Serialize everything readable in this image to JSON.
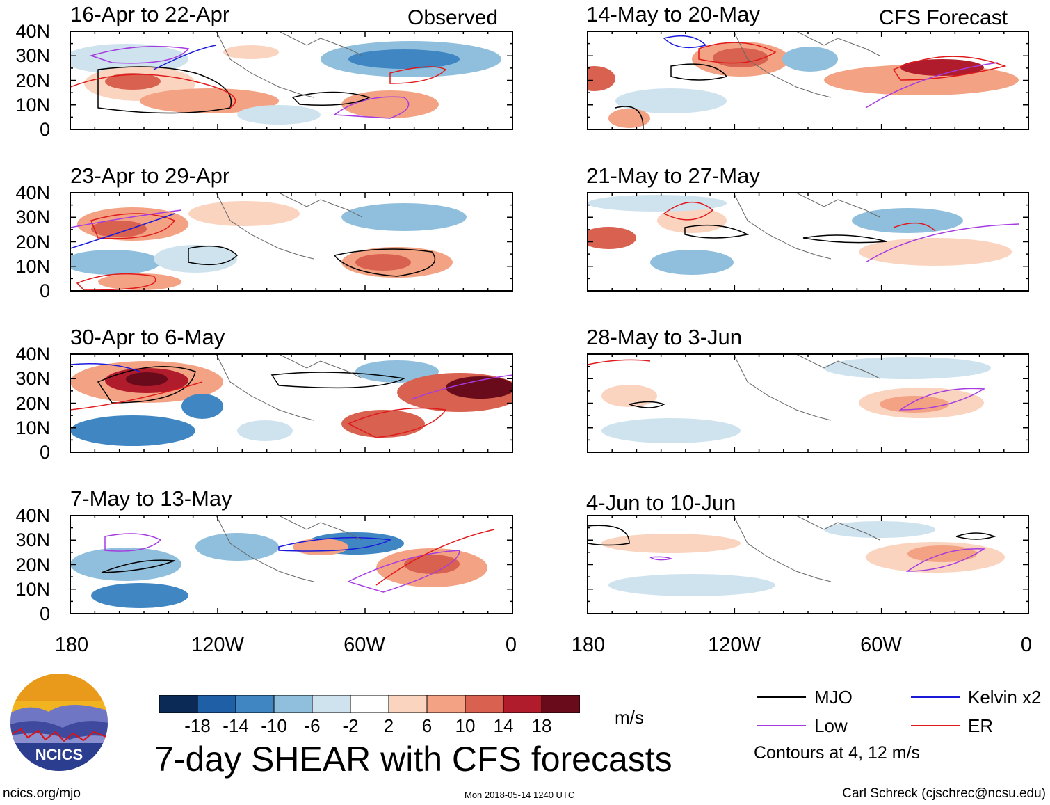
{
  "chart_data": {
    "type": "heatmap",
    "title": "7-day SHEAR with CFS forecasts",
    "units": "m/s",
    "xlabel": "",
    "ylabel": "",
    "x_ticks": [
      "180",
      "120W",
      "60W",
      "0"
    ],
    "y_ticks": [
      "40N",
      "30N",
      "20N",
      "10N",
      "0"
    ],
    "colorbar": {
      "levels": [
        "-18",
        "-14",
        "-10",
        "-6",
        "-2",
        "2",
        "6",
        "10",
        "14",
        "18"
      ],
      "colors": [
        "#0b2a55",
        "#1f5fa6",
        "#3f86c2",
        "#8fbfdc",
        "#cfe3ef",
        "#ffffff",
        "#fbd4c0",
        "#f3a283",
        "#d9614f",
        "#b01c2b",
        "#6a0b1c"
      ]
    },
    "contours_note": "Contours at 4, 12 m/s",
    "legend": [
      {
        "label": "MJO",
        "color": "#000000"
      },
      {
        "label": "Kelvin x2",
        "color": "#1a1adb"
      },
      {
        "label": "Low",
        "color": "#a53be0"
      },
      {
        "label": "ER",
        "color": "#e0191b"
      }
    ],
    "columns": [
      {
        "label": "Observed",
        "panels": [
          {
            "period": "16-Apr to 22-Apr"
          },
          {
            "period": "23-Apr to 29-Apr"
          },
          {
            "period": "30-Apr to 6-May"
          },
          {
            "period": "7-May to 13-May"
          }
        ]
      },
      {
        "label": "CFS Forecast",
        "panels": [
          {
            "period": "14-May to 20-May"
          },
          {
            "period": "21-May to 27-May"
          },
          {
            "period": "28-May to 3-Jun"
          },
          {
            "period": "4-Jun to 10-Jun"
          }
        ]
      }
    ]
  },
  "footer": {
    "site": "ncics.org/mjo",
    "timestamp": "Mon 2018-05-14 1240 UTC",
    "author": "Carl Schreck (cjschrec@ncsu.edu)",
    "logo_text": "NCICS",
    "logo_icon": "ncics-mountain-logo"
  }
}
